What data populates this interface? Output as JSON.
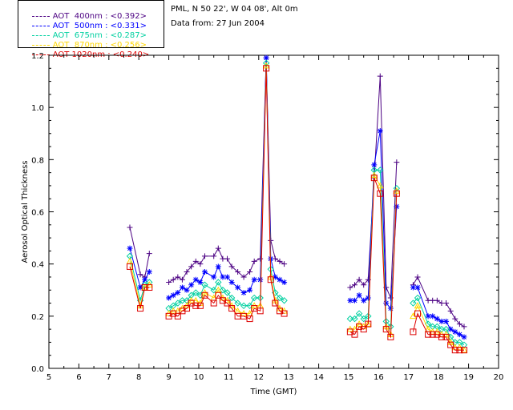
{
  "header": {
    "site": "PML, N 50 22', W 04 08', Alt 0m",
    "date": "Data from: 27 Jun 2004"
  },
  "chart_data": {
    "type": "line",
    "xlabel": "Time (GMT)",
    "ylabel": "Aerosol Optical Thickness",
    "xlim": [
      5,
      20
    ],
    "ylim": [
      0,
      1.2
    ],
    "xticks": [
      "5",
      "6",
      "7",
      "8",
      "9",
      "10",
      "11",
      "12",
      "13",
      "14",
      "15",
      "16",
      "17",
      "18",
      "19",
      "20"
    ],
    "yticks": [
      "0.0",
      "0.2",
      "0.4",
      "0.6",
      "0.8",
      "1.0",
      "1.2"
    ],
    "legend": [
      {
        "label": "AOT  400nm : <0.392>",
        "color": "#4b0082"
      },
      {
        "label": "AOT  500nm : <0.331>",
        "color": "#0000ff"
      },
      {
        "label": "AOT  675nm : <0.287>",
        "color": "#00d0a0"
      },
      {
        "label": "AOT  870nm : <0.256>",
        "color": "#ffd700"
      },
      {
        "label": "AOT 1020nm : <0.240>",
        "color": "#dd0000"
      }
    ],
    "x": [
      7.7,
      8.05,
      8.2,
      8.35,
      9.0,
      9.15,
      9.3,
      9.45,
      9.6,
      9.75,
      9.9,
      10.05,
      10.2,
      10.5,
      10.65,
      10.8,
      10.95,
      11.1,
      11.3,
      11.5,
      11.7,
      11.85,
      12.05,
      12.25,
      12.4,
      12.55,
      12.7,
      12.85,
      15.05,
      15.2,
      15.35,
      15.5,
      15.65,
      15.85,
      16.05,
      16.25,
      16.4,
      16.6,
      17.15,
      17.3,
      17.65,
      17.8,
      17.95,
      18.1,
      18.25,
      18.4,
      18.55,
      18.7,
      18.85
    ],
    "series": [
      {
        "name": "AOT 400nm",
        "color": "#4b0082",
        "marker": "plus",
        "values": [
          0.54,
          0.36,
          0.35,
          0.44,
          0.33,
          0.34,
          0.35,
          0.34,
          0.37,
          0.39,
          0.41,
          0.4,
          0.43,
          0.43,
          0.46,
          0.42,
          0.42,
          0.39,
          0.37,
          0.35,
          0.37,
          0.41,
          0.42,
          1.19,
          0.49,
          0.42,
          0.41,
          0.4,
          0.31,
          0.32,
          0.34,
          0.32,
          0.34,
          0.73,
          1.12,
          0.31,
          0.27,
          0.79,
          0.32,
          0.35,
          0.26,
          0.26,
          0.26,
          0.25,
          0.25,
          0.22,
          0.19,
          0.17,
          0.16
        ]
      },
      {
        "name": "AOT 500nm",
        "color": "#0000ff",
        "marker": "star",
        "values": [
          0.46,
          0.31,
          0.34,
          0.37,
          0.27,
          0.28,
          0.29,
          0.31,
          0.3,
          0.32,
          0.34,
          0.33,
          0.37,
          0.35,
          0.39,
          0.35,
          0.35,
          0.33,
          0.31,
          0.29,
          0.3,
          0.34,
          0.34,
          1.19,
          0.42,
          0.35,
          0.34,
          0.33,
          0.26,
          0.26,
          0.28,
          0.26,
          0.27,
          0.78,
          0.91,
          0.25,
          0.23,
          0.62,
          0.31,
          0.31,
          0.2,
          0.2,
          0.19,
          0.18,
          0.18,
          0.15,
          0.14,
          0.13,
          0.12
        ]
      },
      {
        "name": "AOT 675nm",
        "color": "#00d0a0",
        "marker": "diamond",
        "values": [
          0.43,
          0.26,
          0.32,
          0.33,
          0.23,
          0.24,
          0.25,
          0.26,
          0.26,
          0.28,
          0.29,
          0.28,
          0.32,
          0.3,
          0.33,
          0.3,
          0.29,
          0.27,
          0.25,
          0.24,
          0.24,
          0.27,
          0.27,
          1.17,
          0.38,
          0.29,
          0.27,
          0.26,
          0.19,
          0.19,
          0.21,
          0.19,
          0.2,
          0.76,
          0.76,
          0.18,
          0.16,
          0.69,
          0.25,
          0.27,
          0.17,
          0.16,
          0.16,
          0.15,
          0.15,
          0.12,
          0.1,
          0.1,
          0.09
        ]
      },
      {
        "name": "AOT 870nm",
        "color": "#ffd700",
        "marker": "triangle",
        "values": [
          0.41,
          0.24,
          0.31,
          0.32,
          0.21,
          0.22,
          0.22,
          0.23,
          0.24,
          0.26,
          0.26,
          0.25,
          0.29,
          0.27,
          0.3,
          0.27,
          0.26,
          0.24,
          0.22,
          0.21,
          0.21,
          0.24,
          0.24,
          1.16,
          0.35,
          0.26,
          0.23,
          0.22,
          0.15,
          0.15,
          0.17,
          0.16,
          0.17,
          0.74,
          0.7,
          0.16,
          0.13,
          0.68,
          0.2,
          0.24,
          0.15,
          0.14,
          0.14,
          0.13,
          0.13,
          0.1,
          0.08,
          0.08,
          0.07
        ]
      },
      {
        "name": "AOT 1020nm",
        "color": "#dd0000",
        "marker": "square",
        "values": [
          0.39,
          0.23,
          0.31,
          0.31,
          0.2,
          0.21,
          0.2,
          0.22,
          0.23,
          0.25,
          0.24,
          0.24,
          0.28,
          0.25,
          0.28,
          0.26,
          0.25,
          0.23,
          0.2,
          0.2,
          0.19,
          0.23,
          0.22,
          1.15,
          0.34,
          0.25,
          0.22,
          0.21,
          0.14,
          0.13,
          0.16,
          0.15,
          0.17,
          0.73,
          0.67,
          0.15,
          0.12,
          0.67,
          0.14,
          0.21,
          0.13,
          0.13,
          0.13,
          0.12,
          0.12,
          0.09,
          0.07,
          0.07,
          0.07
        ]
      }
    ]
  }
}
